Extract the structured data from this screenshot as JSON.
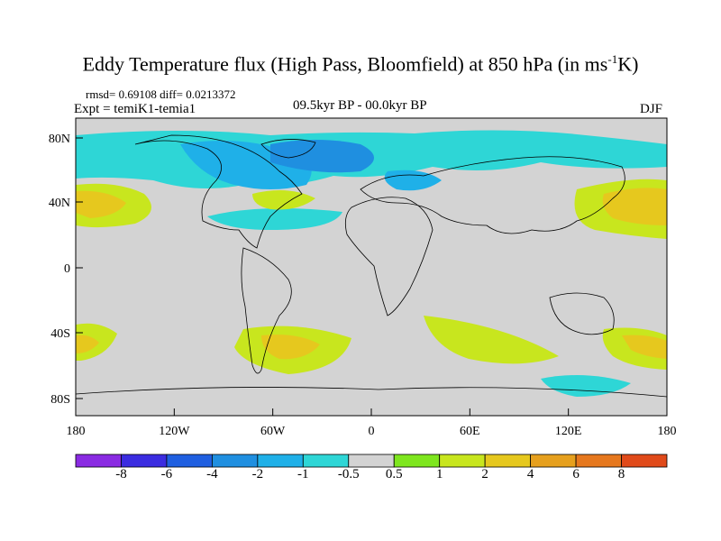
{
  "title": {
    "text": "Eddy Temperature flux (High Pass, Bloomfield) at 850 hPa (in ms",
    "sup": "-1",
    "suffix": "K)"
  },
  "stats": "rmsd= 0.69108 diff= 0.0213372",
  "expt": "Expt = temiK1-temia1",
  "period": "09.5kyr BP - 00.0kyr BP",
  "season": "DJF",
  "axes": {
    "lat_ticks": [
      "80N",
      "40N",
      "0",
      "40S",
      "80S"
    ],
    "lon_ticks": [
      "180",
      "120W",
      "60W",
      "0",
      "60E",
      "120E",
      "180"
    ]
  },
  "colorbar": {
    "labels": [
      "-8",
      "-6",
      "-4",
      "-2",
      "-1",
      "-0.5",
      "0.5",
      "1",
      "2",
      "4",
      "6",
      "8"
    ],
    "colors": [
      "#8a2be2",
      "#3b2ce0",
      "#1f5fe0",
      "#1f8fe0",
      "#1fb0e8",
      "#2ed6d6",
      "#d3d3d3",
      "#7ee61e",
      "#c8e61e",
      "#e6c81e",
      "#e6a01e",
      "#e6781e",
      "#e04a1a"
    ]
  },
  "colors": {
    "land_missing": "#d3d3d3",
    "coast": "#000000"
  }
}
